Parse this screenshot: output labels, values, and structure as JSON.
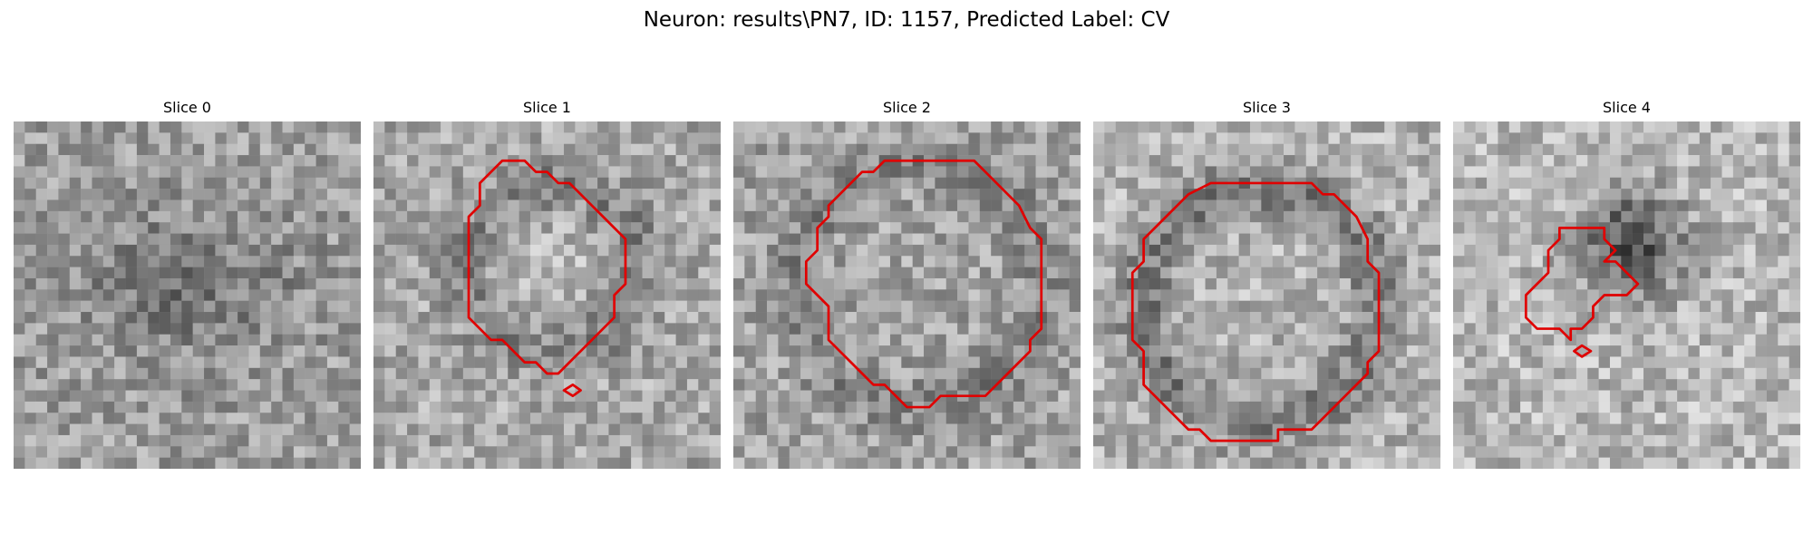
{
  "figure": {
    "title": "Neuron: results\\PN7, ID: 1157, Predicted Label: CV"
  },
  "contour_color": "#e00000",
  "panels": [
    {
      "title": "Slice 0",
      "has_contour": false
    },
    {
      "title": "Slice 1",
      "has_contour": true
    },
    {
      "title": "Slice 2",
      "has_contour": true
    },
    {
      "title": "Slice 3",
      "has_contour": true
    },
    {
      "title": "Slice 4",
      "has_contour": true
    }
  ]
}
